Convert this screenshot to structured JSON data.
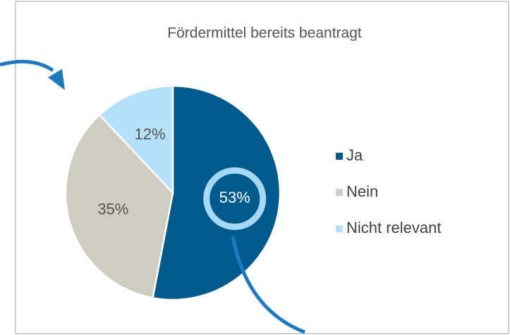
{
  "chart_data": {
    "type": "pie",
    "title": "Fördermittel bereits beantragt",
    "categories": [
      "Ja",
      "Nein",
      "Nicht relevant"
    ],
    "values": [
      53,
      35,
      12
    ],
    "value_labels": [
      "53%",
      "35%",
      "12%"
    ],
    "colors": [
      "#005a8c",
      "#cecdc0",
      "#b4e1f8"
    ],
    "legend": "right"
  }
}
